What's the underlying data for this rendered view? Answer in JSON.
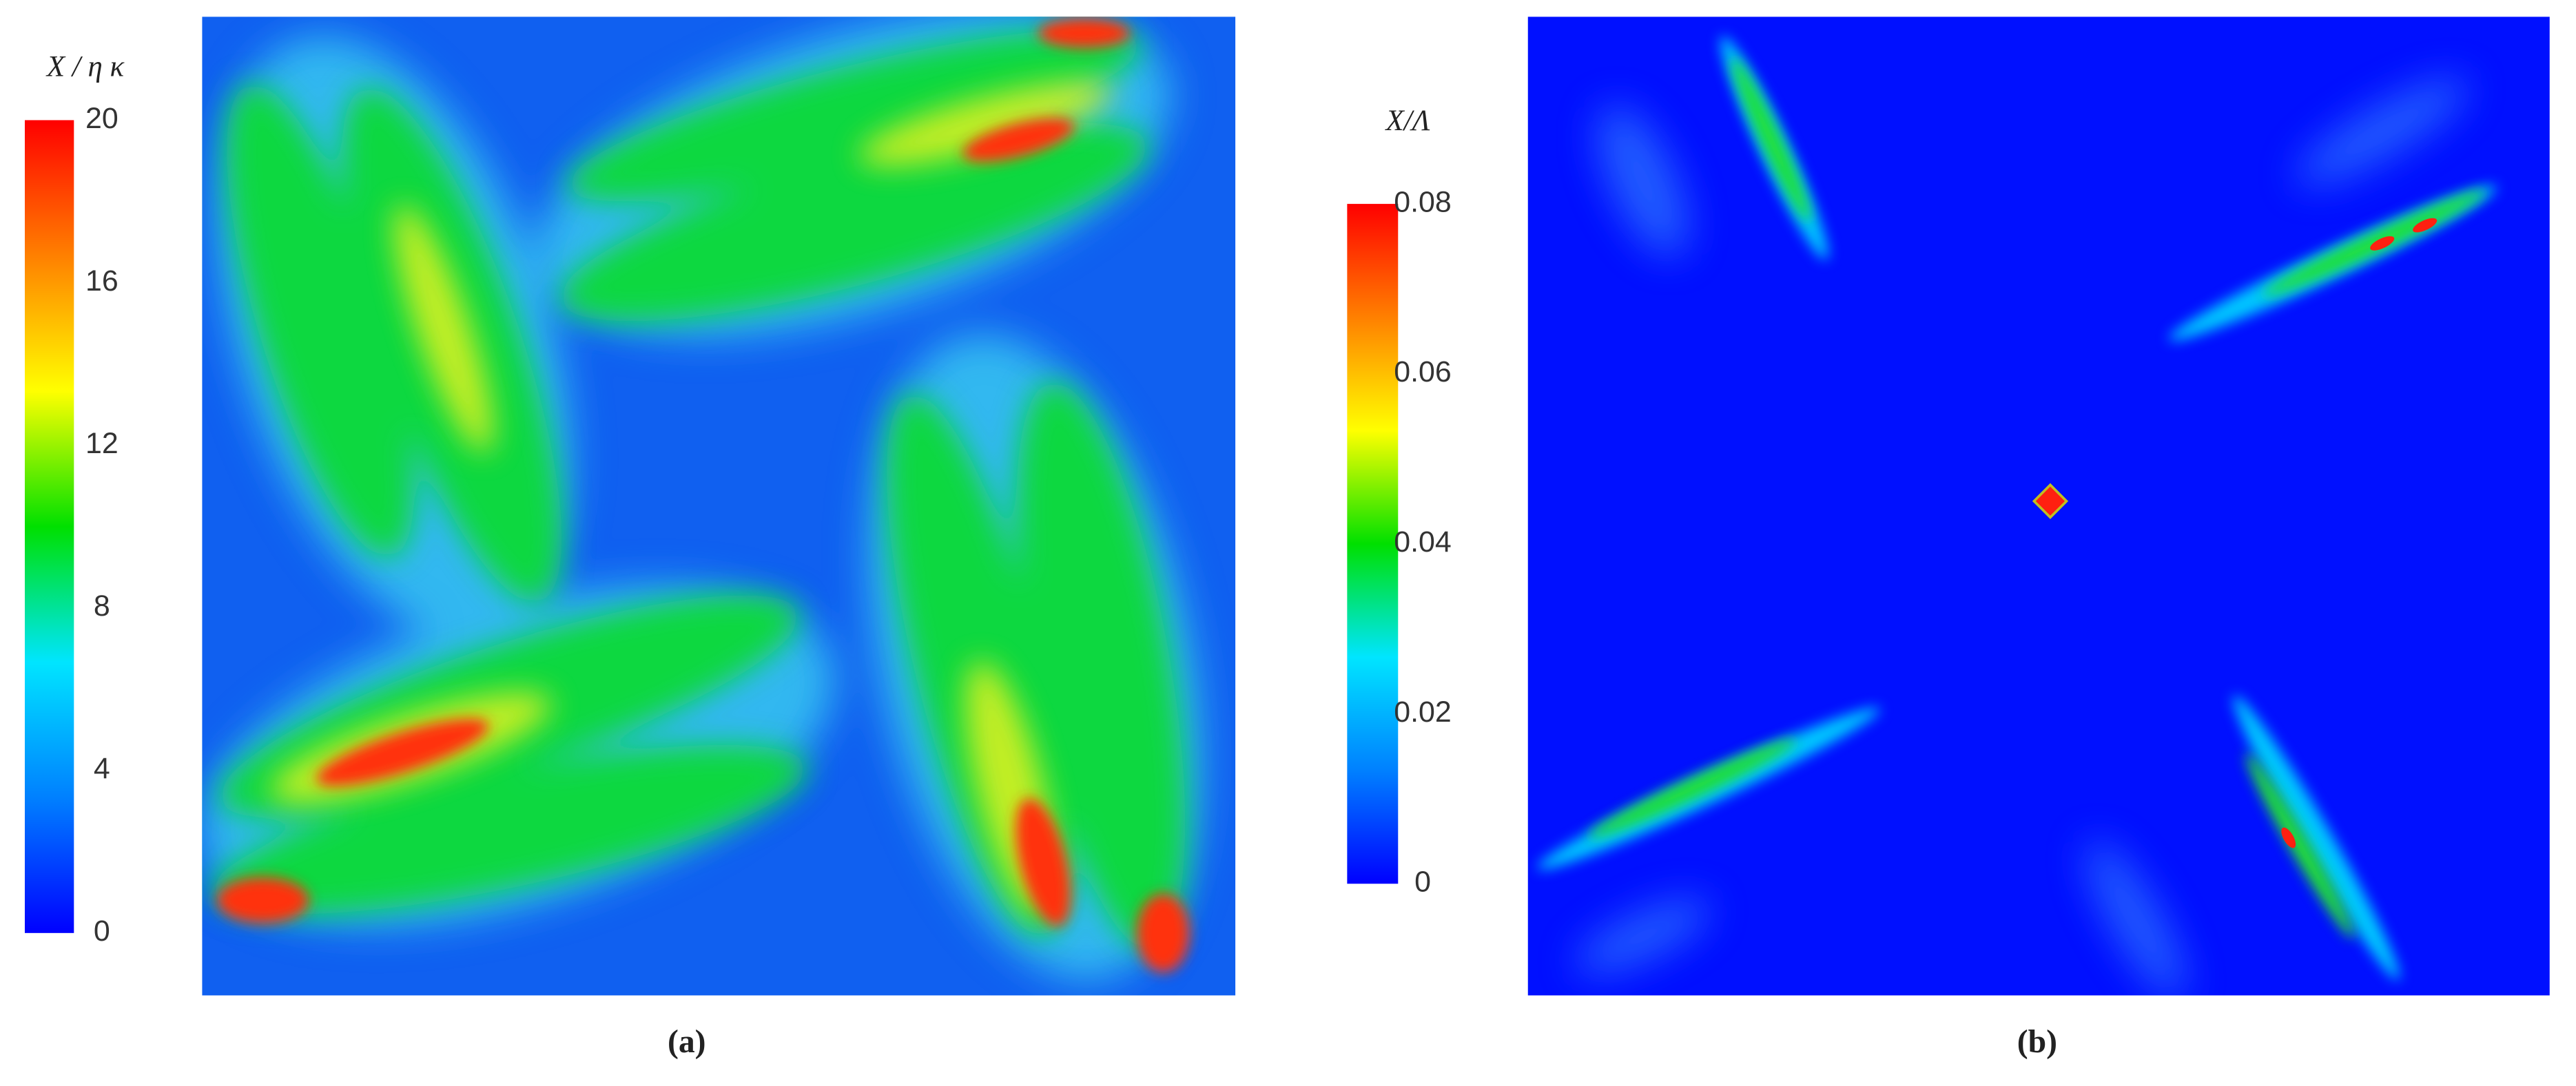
{
  "chart_data": [
    {
      "type": "heatmap",
      "caption": "(a)",
      "colorbar_label": "X / η κ",
      "clim": [
        0,
        20
      ],
      "cticks": [
        0,
        4,
        8,
        12,
        16,
        20
      ],
      "colormap": [
        "#0000ff",
        "#0080ff",
        "#00e5ff",
        "#00e000",
        "#ffff00",
        "#ff8000",
        "#ff0000"
      ]
    },
    {
      "type": "heatmap",
      "caption": "(b)",
      "colorbar_label": "X/Λ",
      "clim": [
        0,
        0.08
      ],
      "cticks": [
        0,
        0.02,
        0.04,
        0.06,
        0.08
      ],
      "colormap": [
        "#0000ff",
        "#0080ff",
        "#00e5ff",
        "#00e000",
        "#ffff00",
        "#ff8000",
        "#ff0000"
      ]
    }
  ]
}
